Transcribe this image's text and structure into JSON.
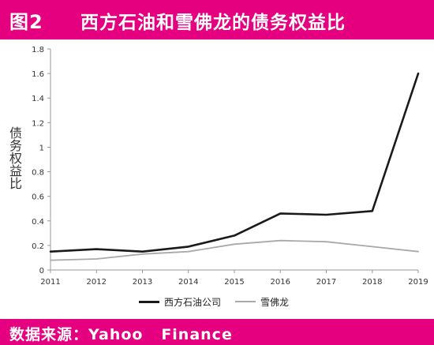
{
  "header": {
    "figure_label": "图2",
    "title": "西方石油和雪佛龙的债务权益比"
  },
  "footer": {
    "source": "数据来源：Yahoo   Finance"
  },
  "colors": {
    "banner": "#e4007f",
    "series_1": "#1a1a1a",
    "series_2": "#a9a9a9",
    "axis": "#999999"
  },
  "chart_data": {
    "type": "line",
    "title": "",
    "xlabel": "",
    "ylabel": "债务权益比",
    "x": [
      "2011",
      "2012",
      "2013",
      "2014",
      "2015",
      "2016",
      "2017",
      "2018",
      "2019"
    ],
    "ylim": [
      0,
      1.8
    ],
    "yticks": [
      "0",
      "0.2",
      "0.4",
      "0.6",
      "0.8",
      "1",
      "1.2",
      "1.4",
      "1.6",
      "1.8"
    ],
    "grid": false,
    "legend_position": "bottom",
    "series": [
      {
        "name": "西方石油公司",
        "values": [
          0.15,
          0.17,
          0.15,
          0.19,
          0.28,
          0.46,
          0.45,
          0.48,
          1.6
        ]
      },
      {
        "name": "雪佛龙",
        "values": [
          0.08,
          0.09,
          0.13,
          0.15,
          0.21,
          0.24,
          0.23,
          0.19,
          0.15
        ]
      }
    ]
  }
}
